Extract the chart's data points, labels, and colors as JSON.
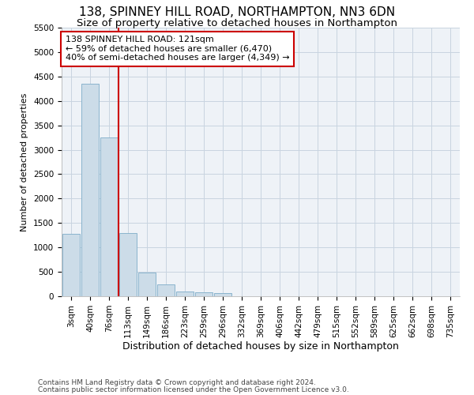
{
  "title1": "138, SPINNEY HILL ROAD, NORTHAMPTON, NN3 6DN",
  "title2": "Size of property relative to detached houses in Northampton",
  "xlabel": "Distribution of detached houses by size in Northampton",
  "ylabel": "Number of detached properties",
  "categories": [
    "3sqm",
    "40sqm",
    "76sqm",
    "113sqm",
    "149sqm",
    "186sqm",
    "223sqm",
    "259sqm",
    "296sqm",
    "332sqm",
    "369sqm",
    "406sqm",
    "442sqm",
    "479sqm",
    "515sqm",
    "552sqm",
    "589sqm",
    "625sqm",
    "662sqm",
    "698sqm",
    "735sqm"
  ],
  "values": [
    1270,
    4350,
    3250,
    1300,
    480,
    240,
    100,
    75,
    60,
    0,
    0,
    0,
    0,
    0,
    0,
    0,
    0,
    0,
    0,
    0,
    0
  ],
  "bar_color": "#ccdce8",
  "bar_edge_color": "#8ab4cd",
  "vline_color": "#cc0000",
  "vline_x_idx": 2.5,
  "annotation_text": "138 SPINNEY HILL ROAD: 121sqm\n← 59% of detached houses are smaller (6,470)\n40% of semi-detached houses are larger (4,349) →",
  "annotation_box_color": "white",
  "annotation_box_edge": "#cc0000",
  "ylim": [
    0,
    5500
  ],
  "yticks": [
    0,
    500,
    1000,
    1500,
    2000,
    2500,
    3000,
    3500,
    4000,
    4500,
    5000,
    5500
  ],
  "footer1": "Contains HM Land Registry data © Crown copyright and database right 2024.",
  "footer2": "Contains public sector information licensed under the Open Government Licence v3.0.",
  "plot_bg_color": "#eef2f7",
  "grid_color": "#c8d4e0",
  "title1_fontsize": 11,
  "title2_fontsize": 9.5,
  "xlabel_fontsize": 9,
  "ylabel_fontsize": 8,
  "tick_fontsize": 7.5,
  "ann_fontsize": 8,
  "footer_fontsize": 6.5
}
